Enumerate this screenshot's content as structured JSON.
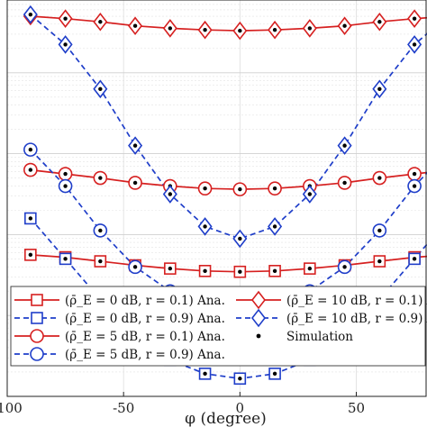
{
  "chart_data": {
    "type": "line",
    "xlabel": "φ (degree)",
    "ylabel": "",
    "x_ticks": [
      -100,
      -50,
      0,
      50
    ],
    "xlim": [
      -100,
      80
    ],
    "ylog": true,
    "ylim_log10": [
      -5.0,
      -0.1
    ],
    "grid": true,
    "legend_position": "bottom",
    "x": [
      -90,
      -75,
      -60,
      -45,
      -30,
      -15,
      0,
      15,
      30,
      45,
      60,
      75,
      90
    ],
    "series": [
      {
        "name": "(ρ̄_E = 0 dB, r = 0.1) Ana.",
        "color": "#d62020",
        "marker": "square",
        "dash": false,
        "log10_values": [
          -3.25,
          -3.28,
          -3.33,
          -3.38,
          -3.42,
          -3.45,
          -3.46,
          -3.45,
          -3.42,
          -3.38,
          -3.33,
          -3.28,
          -3.25
        ]
      },
      {
        "name": "(ρ̄_E = 0 dB, r = 0.9) Ana.",
        "color": "#1f3ec9",
        "marker": "square",
        "dash": true,
        "log10_values": [
          -2.8,
          -3.3,
          -3.8,
          -4.2,
          -4.55,
          -4.72,
          -4.78,
          -4.72,
          -4.55,
          -4.2,
          -3.8,
          -3.3,
          -2.8
        ]
      },
      {
        "name": "(ρ̄_E = 5 dB, r = 0.1) Ana.",
        "color": "#d62020",
        "marker": "circle",
        "dash": false,
        "log10_values": [
          -2.2,
          -2.25,
          -2.3,
          -2.36,
          -2.4,
          -2.43,
          -2.44,
          -2.43,
          -2.4,
          -2.36,
          -2.3,
          -2.25,
          -2.2
        ]
      },
      {
        "name": "(ρ̄_E = 5 dB, r = 0.9) Ana.",
        "color": "#1f3ec9",
        "marker": "circle",
        "dash": true,
        "log10_values": [
          -1.95,
          -2.4,
          -2.95,
          -3.4,
          -3.7,
          -3.9,
          -3.98,
          -3.9,
          -3.7,
          -3.4,
          -2.95,
          -2.4,
          -1.95
        ]
      },
      {
        "name": "(ρ̄_E = 10 dB, r = 0.1) Ana.",
        "color": "#d62020",
        "marker": "diamond",
        "dash": false,
        "log10_values": [
          -0.3,
          -0.33,
          -0.37,
          -0.42,
          -0.45,
          -0.47,
          -0.48,
          -0.47,
          -0.45,
          -0.42,
          -0.37,
          -0.33,
          -0.3
        ]
      },
      {
        "name": "(ρ̄_E = 10 dB, r = 0.9) Ana.",
        "color": "#1f3ec9",
        "marker": "diamond",
        "dash": true,
        "log10_values": [
          -0.28,
          -0.65,
          -1.2,
          -1.9,
          -2.5,
          -2.9,
          -3.05,
          -2.9,
          -2.5,
          -1.9,
          -1.2,
          -0.65,
          -0.28
        ]
      }
    ],
    "simulation_label": "Simulation"
  }
}
